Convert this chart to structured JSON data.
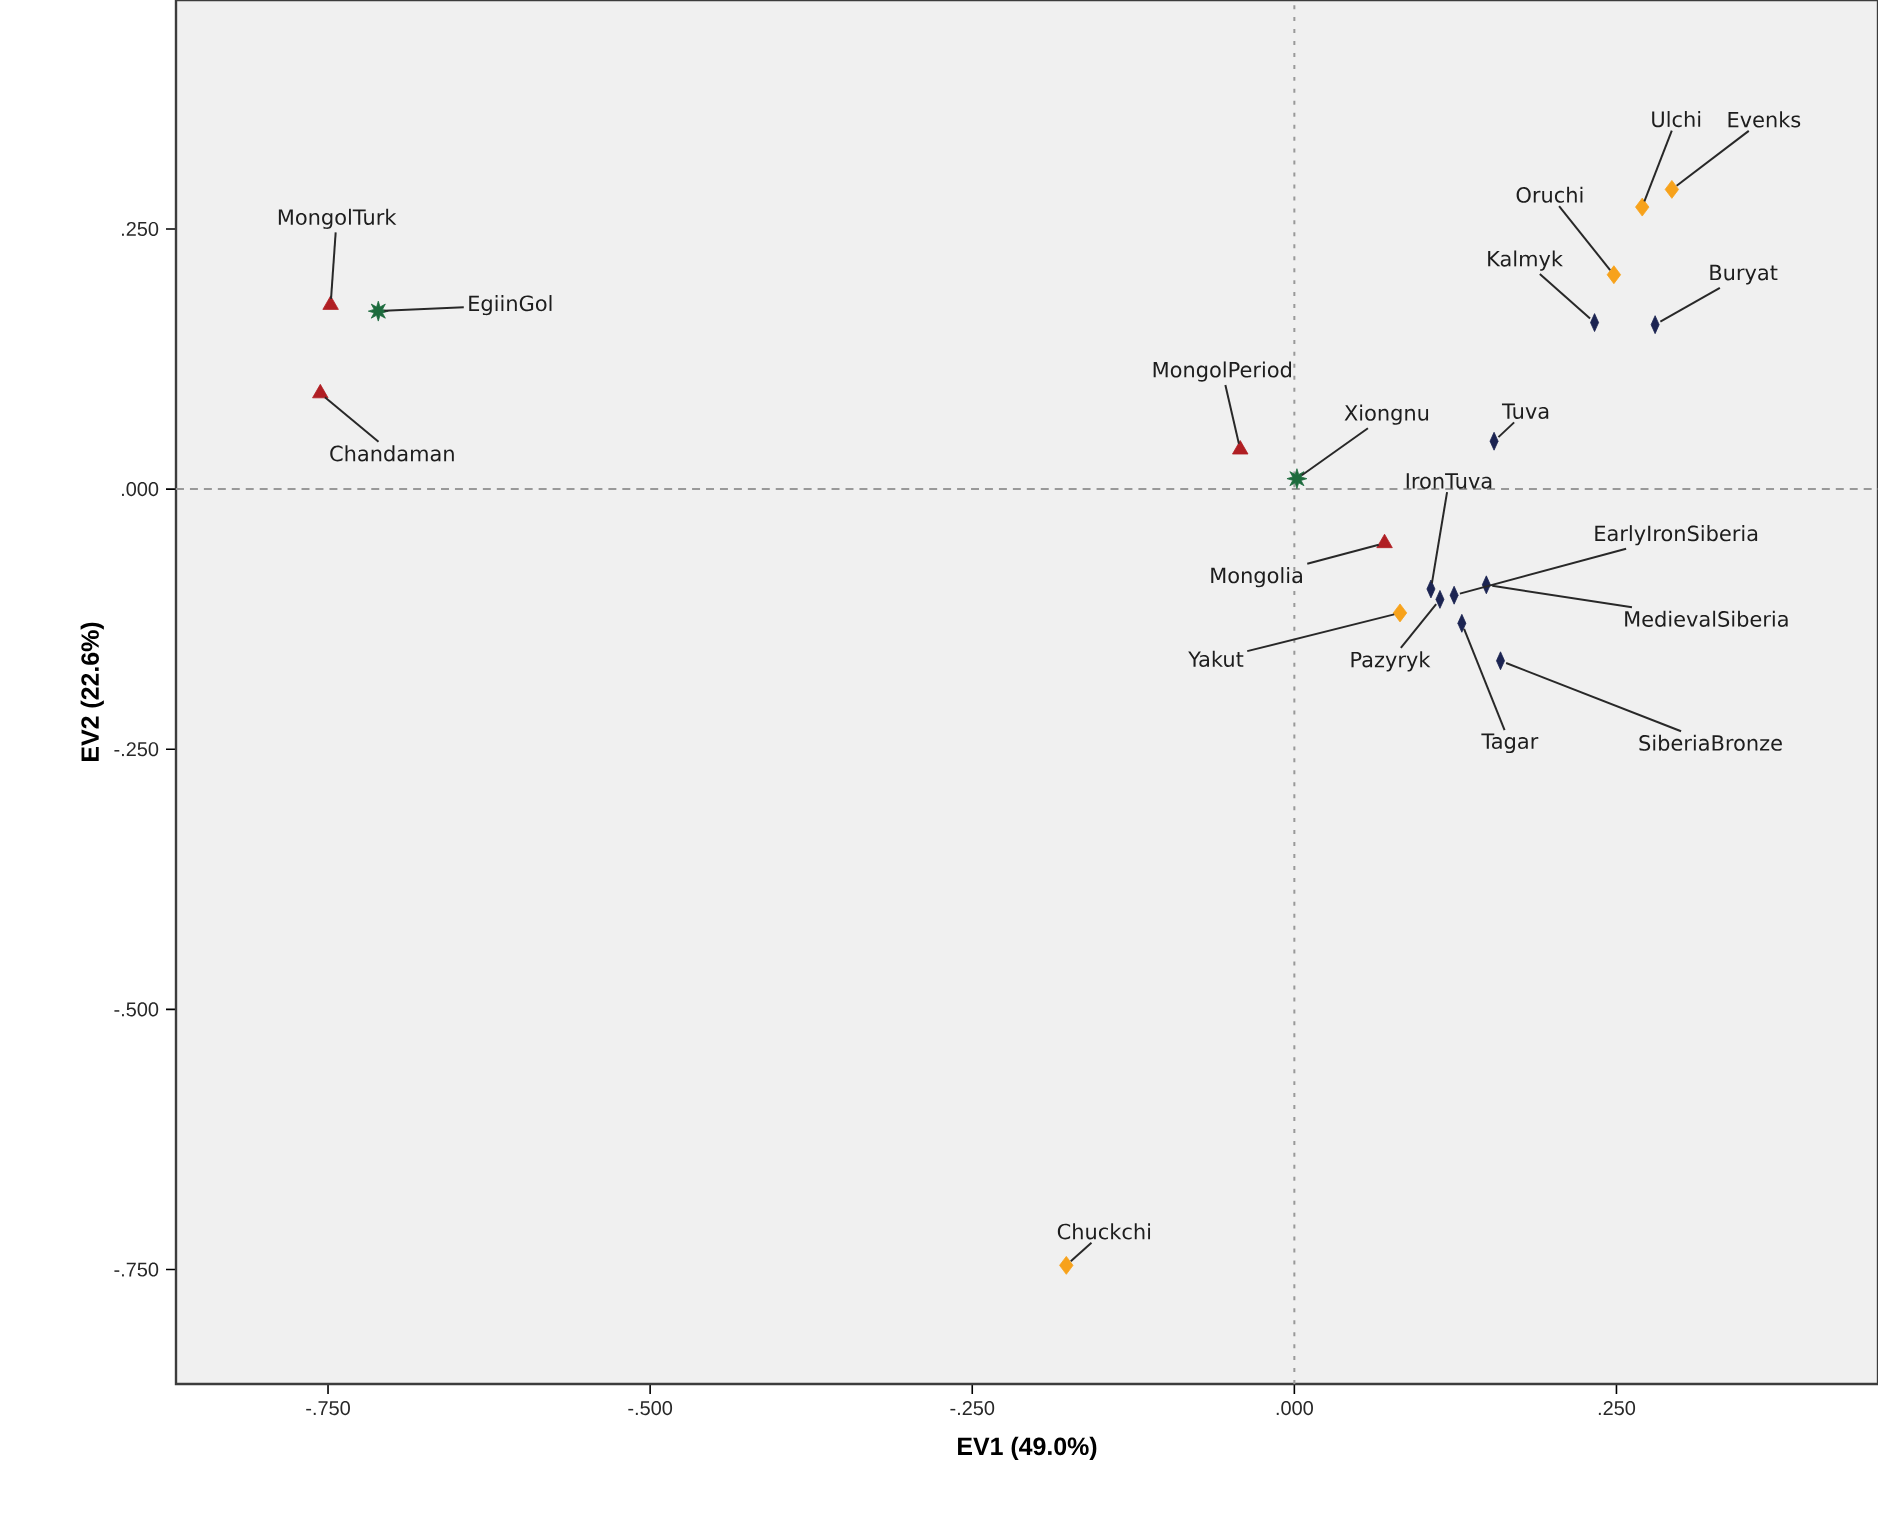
{
  "chart_data": {
    "type": "scatter",
    "xlabel": "EV1 (49.0%)",
    "ylabel": "EV2 (22.6%)",
    "xlim": [
      -0.868,
      0.453
    ],
    "ylim": [
      -0.86,
      0.47
    ],
    "xticks": [
      {
        "value": -0.75,
        "label": "-.750"
      },
      {
        "value": -0.5,
        "label": "-.500"
      },
      {
        "value": -0.25,
        "label": "-.250"
      },
      {
        "value": 0,
        "label": ".000"
      },
      {
        "value": 0.25,
        "label": ".250"
      }
    ],
    "yticks": [
      {
        "value": -0.75,
        "label": "-.750"
      },
      {
        "value": -0.5,
        "label": "-.500"
      },
      {
        "value": -0.25,
        "label": "-.250"
      },
      {
        "value": 0,
        "label": ".000"
      },
      {
        "value": 0.25,
        "label": ".250"
      }
    ],
    "grid": false,
    "ref_lines": [
      {
        "axis": "x",
        "value": 0,
        "line_style": "dotted",
        "color": "#999999"
      },
      {
        "axis": "y",
        "value": 0,
        "line_style": "dashed",
        "color": "#999999"
      }
    ],
    "series": [
      {
        "color": "#b01e23",
        "marker": "triangle",
        "x": [
          -0.748,
          -0.756,
          -0.042,
          0.07
        ],
        "values": [
          0.177,
          0.092,
          0.038,
          -0.052
        ]
      },
      {
        "color": "#1d6b3d",
        "marker": "star",
        "x": [
          -0.711,
          0.002
        ],
        "values": [
          0.171,
          0.01
        ]
      },
      {
        "color": "#f7a21b",
        "marker": "diamond",
        "x": [
          0.082,
          0.27,
          0.293,
          0.248,
          -0.177
        ],
        "values": [
          -0.119,
          0.271,
          0.288,
          0.206,
          -0.746
        ]
      },
      {
        "color": "#1c2452",
        "marker": "diamond",
        "x": [
          0.155,
          0.106,
          0.124,
          0.149,
          0.113,
          0.13,
          0.16,
          0.233,
          0.28
        ],
        "values": [
          0.046,
          -0.096,
          -0.102,
          -0.092,
          -0.106,
          -0.129,
          -0.165,
          0.16,
          0.158
        ]
      }
    ],
    "annotations": [
      {
        "text": "MongolTurk",
        "x": -0.748,
        "y": 0.177
      },
      {
        "text": "EgiinGol",
        "x": -0.711,
        "y": 0.171
      },
      {
        "text": "Chandaman",
        "x": -0.756,
        "y": 0.092
      },
      {
        "text": "MongolPeriod",
        "x": -0.042,
        "y": 0.038
      },
      {
        "text": "Xiongnu",
        "x": 0.002,
        "y": 0.01
      },
      {
        "text": "Tuva",
        "x": 0.155,
        "y": 0.046
      },
      {
        "text": "IronTuva",
        "x": 0.106,
        "y": -0.096
      },
      {
        "text": "EarlyIronSiberia",
        "x": 0.124,
        "y": -0.102
      },
      {
        "text": "MedievalSiberia",
        "x": 0.149,
        "y": -0.092
      },
      {
        "text": "Mongolia",
        "x": 0.07,
        "y": -0.052
      },
      {
        "text": "Yakut",
        "x": 0.082,
        "y": -0.119
      },
      {
        "text": "Pazyryk",
        "x": 0.113,
        "y": -0.106
      },
      {
        "text": "Tagar",
        "x": 0.13,
        "y": -0.129
      },
      {
        "text": "SiberiaBronze",
        "x": 0.16,
        "y": -0.165
      },
      {
        "text": "Ulchi",
        "x": 0.27,
        "y": 0.271
      },
      {
        "text": "Evenks",
        "x": 0.293,
        "y": 0.288
      },
      {
        "text": "Oruchi",
        "x": 0.248,
        "y": 0.206
      },
      {
        "text": "Kalmyk",
        "x": 0.233,
        "y": 0.16
      },
      {
        "text": "Buryat",
        "x": 0.28,
        "y": 0.158
      },
      {
        "text": "Chuckchi",
        "x": -0.177,
        "y": -0.746
      }
    ]
  }
}
